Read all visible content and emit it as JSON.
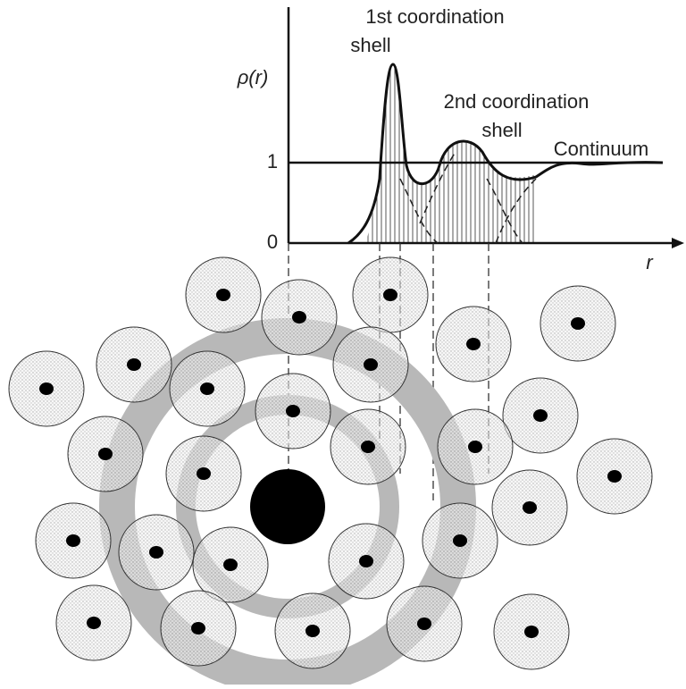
{
  "figure": {
    "y_label": "ρ(r)",
    "x_label": "r",
    "ticks": [
      "0",
      "1"
    ],
    "annotations": {
      "first_shell": [
        "1st coordination",
        "shell"
      ],
      "second_shell": [
        "2nd coordination",
        "shell"
      ],
      "continuum": "Continuum"
    }
  }
}
